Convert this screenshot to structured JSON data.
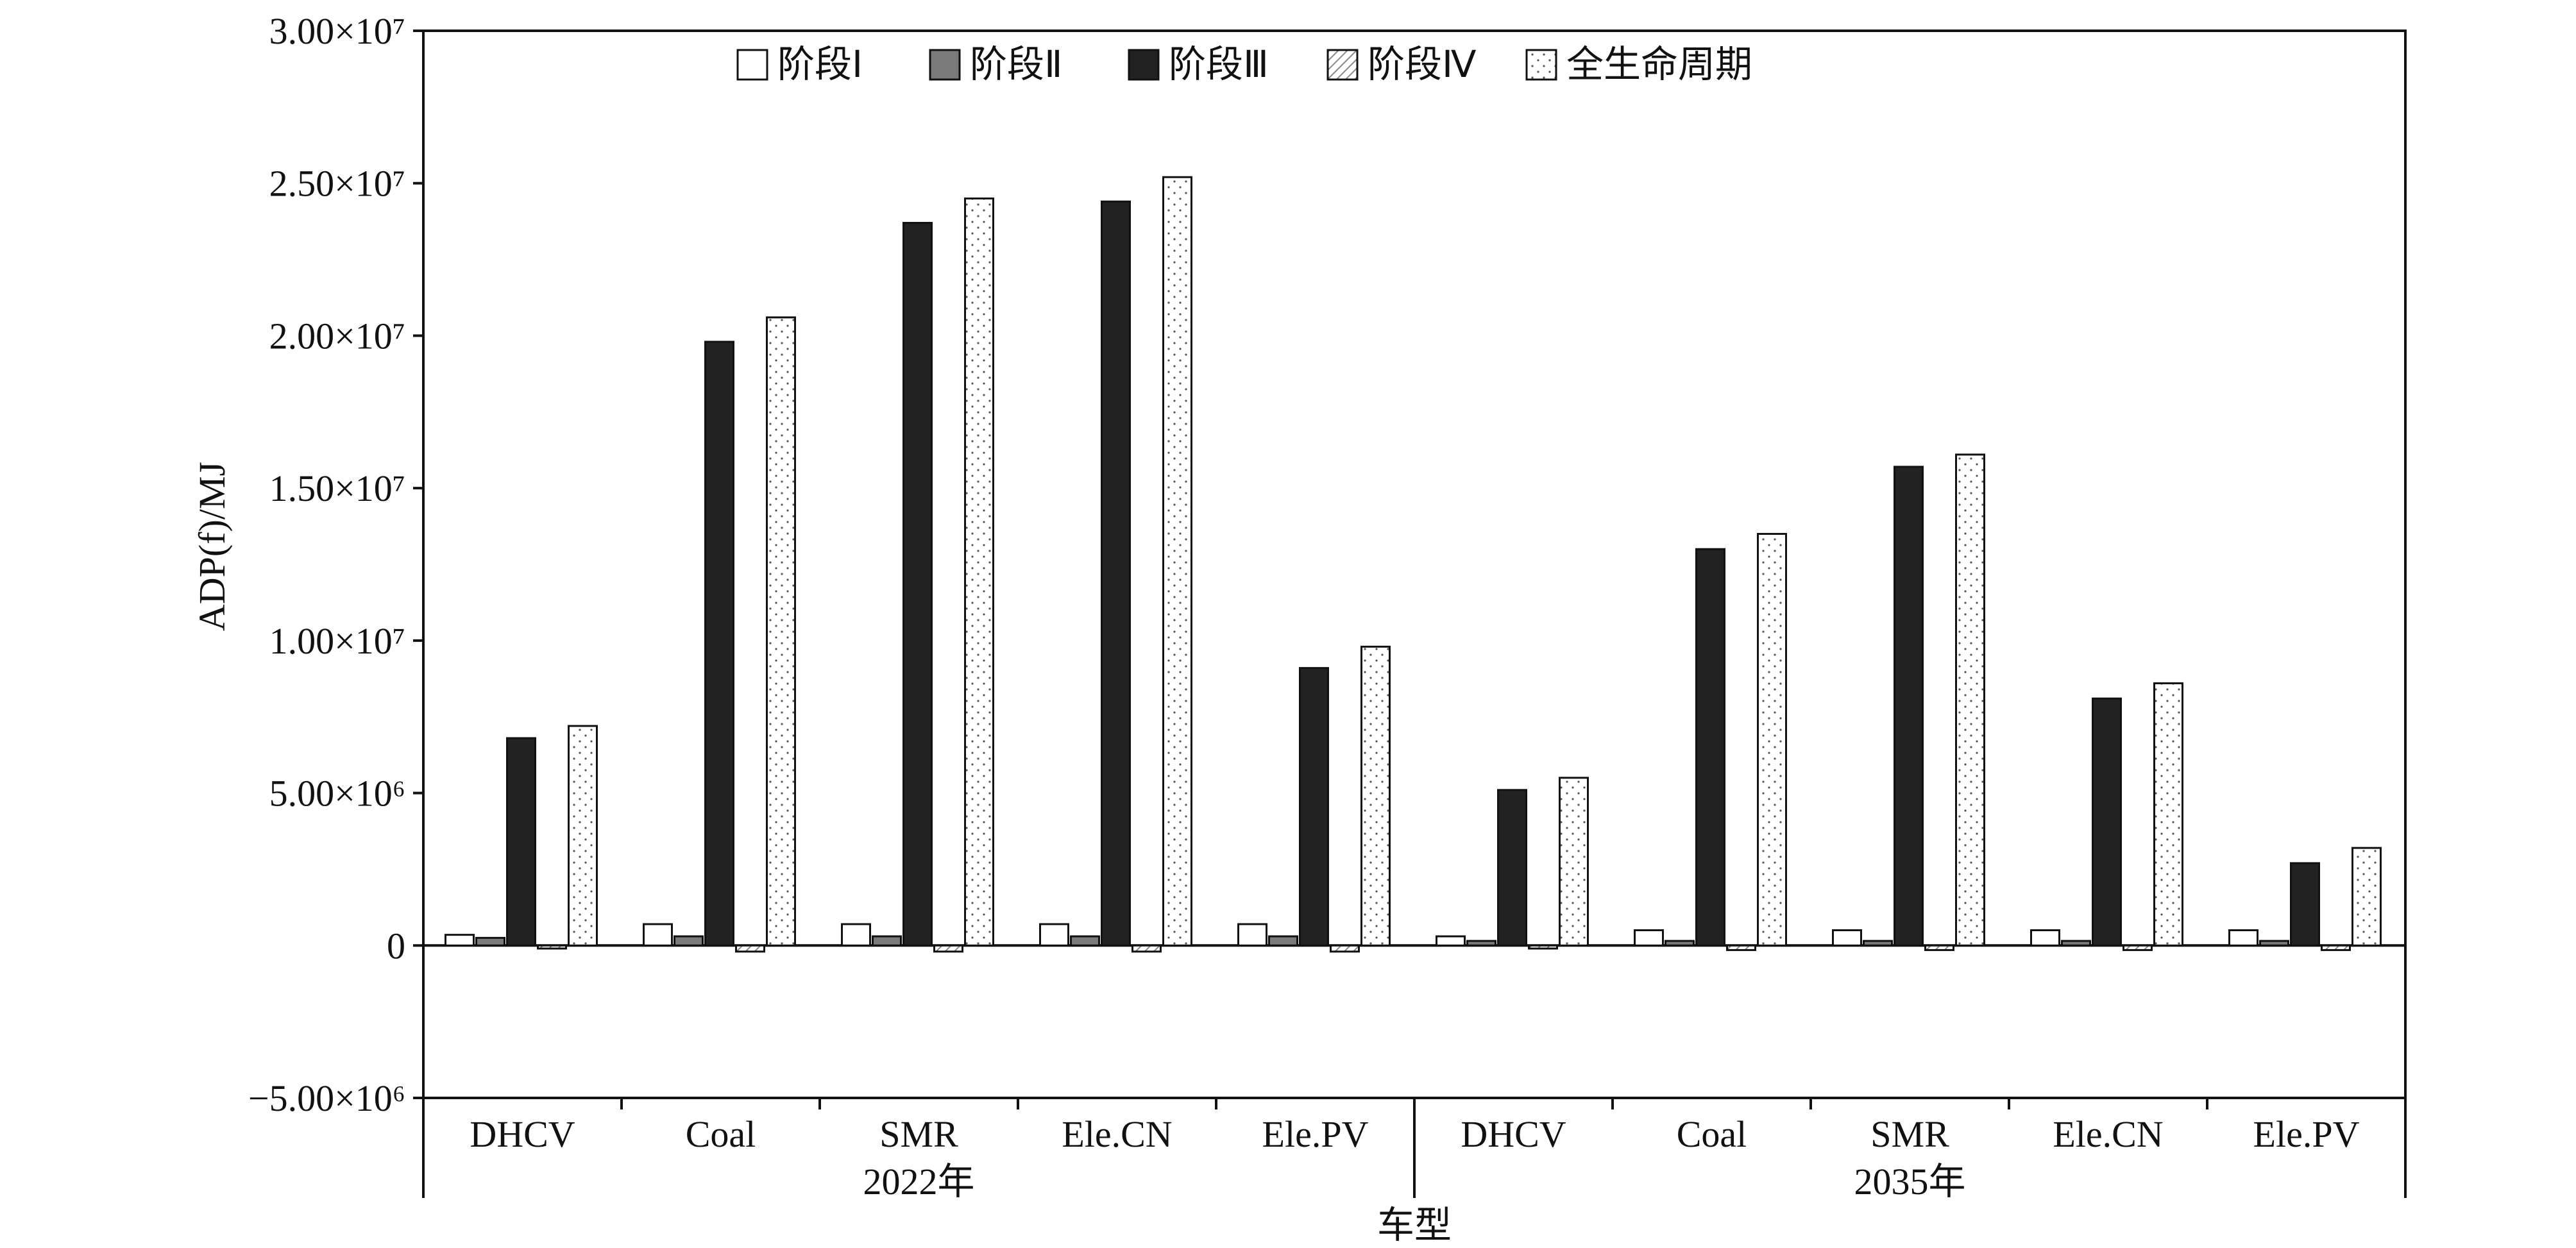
{
  "chart_data": {
    "type": "bar",
    "ylabel": "ADP(f)/MJ",
    "xlabel": "车型",
    "ylim": [
      -5000000,
      30000000
    ],
    "yticks": [
      {
        "value": -5000000,
        "label": "−5.00×10⁶"
      },
      {
        "value": 0,
        "label": "0"
      },
      {
        "value": 5000000,
        "label": "5.00×10⁶"
      },
      {
        "value": 10000000,
        "label": "1.00×10⁷"
      },
      {
        "value": 15000000,
        "label": "1.50×10⁷"
      },
      {
        "value": 20000000,
        "label": "2.00×10⁷"
      },
      {
        "value": 25000000,
        "label": "2.50×10⁷"
      },
      {
        "value": 30000000,
        "label": "3.00×10⁷"
      }
    ],
    "groups": [
      {
        "label": "2022年",
        "categories": [
          "DHCV",
          "Coal",
          "SMR",
          "Ele.CN",
          "Ele.PV"
        ]
      },
      {
        "label": "2035年",
        "categories": [
          "DHCV",
          "Coal",
          "SMR",
          "Ele.CN",
          "Ele.PV"
        ]
      }
    ],
    "legend_position": "top",
    "grid": false,
    "series": [
      {
        "name": "阶段Ⅰ",
        "style": "white",
        "values": [
          350000,
          700000,
          700000,
          700000,
          700000,
          300000,
          500000,
          500000,
          500000,
          500000
        ]
      },
      {
        "name": "阶段Ⅱ",
        "style": "gray",
        "values": [
          250000,
          300000,
          300000,
          300000,
          300000,
          150000,
          150000,
          150000,
          150000,
          150000
        ]
      },
      {
        "name": "阶段Ⅲ",
        "style": "black",
        "values": [
          6800000,
          19800000,
          23700000,
          24400000,
          9100000,
          5100000,
          13000000,
          15700000,
          8100000,
          2700000
        ]
      },
      {
        "name": "阶段Ⅳ",
        "style": "hatched",
        "values": [
          -100000,
          -200000,
          -200000,
          -200000,
          -200000,
          -100000,
          -150000,
          -150000,
          -150000,
          -150000
        ]
      },
      {
        "name": "全生命周期",
        "style": "dotted",
        "values": [
          7200000,
          20600000,
          24500000,
          25200000,
          9800000,
          5500000,
          13500000,
          16100000,
          8600000,
          3200000
        ]
      }
    ],
    "colors": {
      "white": "#ffffff",
      "gray": "#7a7a7a",
      "black": "#222222",
      "stroke": "#111111"
    }
  }
}
